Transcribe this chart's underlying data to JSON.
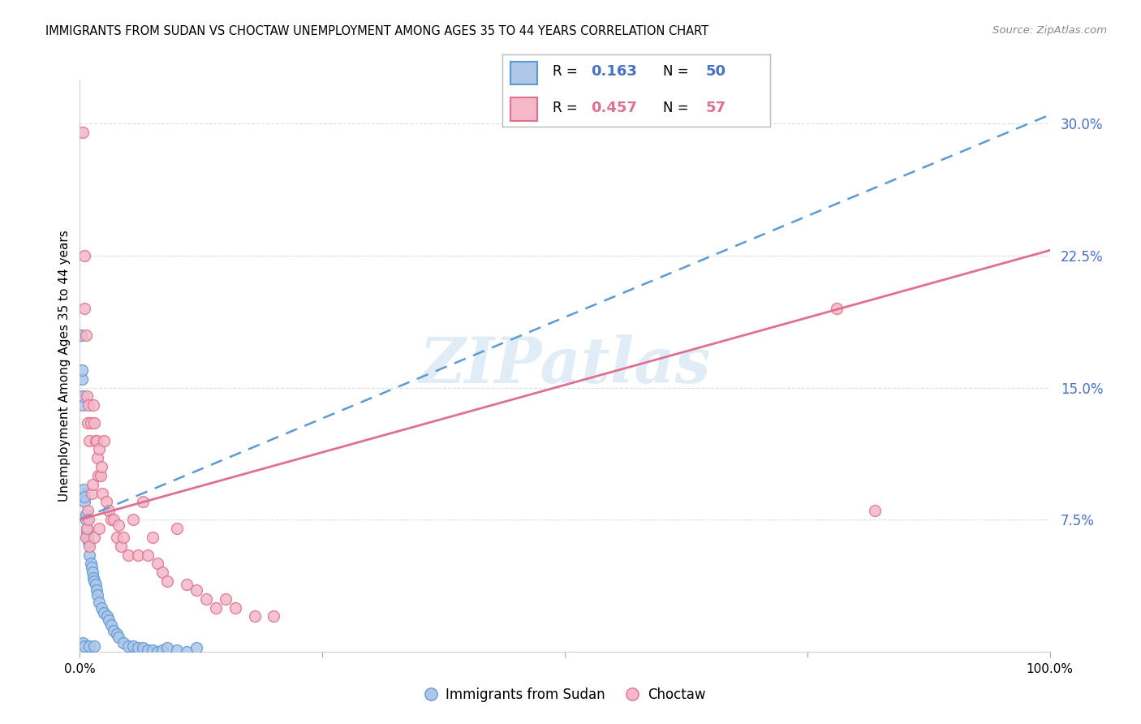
{
  "title": "IMMIGRANTS FROM SUDAN VS CHOCTAW UNEMPLOYMENT AMONG AGES 35 TO 44 YEARS CORRELATION CHART",
  "source": "Source: ZipAtlas.com",
  "ylabel": "Unemployment Among Ages 35 to 44 years",
  "xrange": [
    0.0,
    100.0
  ],
  "yrange": [
    0.0,
    0.325
  ],
  "yticks": [
    0.075,
    0.15,
    0.225,
    0.3
  ],
  "ytick_labels": [
    "7.5%",
    "15.0%",
    "22.5%",
    "30.0%"
  ],
  "xtick_positions": [
    0.0,
    25.0,
    50.0,
    75.0,
    100.0
  ],
  "xtick_labels": [
    "0.0%",
    "",
    "",
    "",
    "100.0%"
  ],
  "series1_color": "#aec6e8",
  "series1_edge": "#5b9bd5",
  "series1_R": 0.163,
  "series1_N": 50,
  "series2_color": "#f4b8c8",
  "series2_edge": "#e07090",
  "series2_R": 0.457,
  "series2_N": 57,
  "trend1_color": "#5b9bd5",
  "trend1_style": "--",
  "trend2_color": "#e07090",
  "trend2_style": "-",
  "watermark": "ZIPatlas",
  "watermark_color": "#c8dff0",
  "blue_text_color": "#4472c4",
  "pink_text_color": "#e07090",
  "scatter1_x": [
    0.1,
    0.2,
    0.2,
    0.3,
    0.3,
    0.3,
    0.4,
    0.4,
    0.5,
    0.5,
    0.5,
    0.6,
    0.6,
    0.7,
    0.7,
    0.8,
    0.9,
    1.0,
    1.0,
    1.1,
    1.2,
    1.3,
    1.4,
    1.5,
    1.5,
    1.6,
    1.7,
    1.8,
    2.0,
    2.2,
    2.5,
    2.8,
    3.0,
    3.2,
    3.5,
    3.8,
    4.0,
    4.5,
    5.0,
    5.5,
    6.0,
    6.5,
    7.0,
    7.5,
    8.0,
    8.5,
    9.0,
    10.0,
    11.0,
    12.0
  ],
  "scatter1_y": [
    0.18,
    0.155,
    0.16,
    0.14,
    0.145,
    0.005,
    0.09,
    0.092,
    0.085,
    0.088,
    0.003,
    0.075,
    0.078,
    0.068,
    0.07,
    0.065,
    0.062,
    0.055,
    0.003,
    0.05,
    0.048,
    0.045,
    0.042,
    0.04,
    0.003,
    0.038,
    0.035,
    0.032,
    0.028,
    0.025,
    0.022,
    0.02,
    0.018,
    0.015,
    0.012,
    0.01,
    0.008,
    0.005,
    0.003,
    0.003,
    0.002,
    0.002,
    0.001,
    0.001,
    0.0,
    0.001,
    0.002,
    0.001,
    0.0,
    0.002
  ],
  "scatter2_x": [
    0.3,
    0.5,
    0.6,
    0.7,
    0.8,
    0.9,
    1.0,
    1.1,
    1.2,
    1.3,
    1.4,
    1.5,
    1.6,
    1.7,
    1.8,
    1.9,
    2.0,
    2.1,
    2.2,
    2.3,
    2.5,
    2.7,
    3.0,
    3.2,
    3.5,
    3.8,
    4.0,
    4.2,
    4.5,
    5.0,
    5.5,
    6.0,
    6.5,
    7.0,
    7.5,
    8.0,
    8.5,
    9.0,
    10.0,
    11.0,
    12.0,
    13.0,
    14.0,
    15.0,
    16.0,
    18.0,
    20.0,
    78.0,
    82.0,
    0.5,
    0.6,
    0.7,
    0.8,
    0.9,
    1.0,
    1.5,
    2.0
  ],
  "scatter2_y": [
    0.295,
    0.195,
    0.18,
    0.145,
    0.13,
    0.14,
    0.12,
    0.13,
    0.09,
    0.095,
    0.14,
    0.13,
    0.12,
    0.12,
    0.11,
    0.1,
    0.115,
    0.1,
    0.105,
    0.09,
    0.12,
    0.085,
    0.08,
    0.075,
    0.075,
    0.065,
    0.072,
    0.06,
    0.065,
    0.055,
    0.075,
    0.055,
    0.085,
    0.055,
    0.065,
    0.05,
    0.045,
    0.04,
    0.07,
    0.038,
    0.035,
    0.03,
    0.025,
    0.03,
    0.025,
    0.02,
    0.02,
    0.195,
    0.08,
    0.225,
    0.065,
    0.07,
    0.08,
    0.075,
    0.06,
    0.065,
    0.07
  ],
  "trend1_x0": 0.0,
  "trend1_y0": 0.075,
  "trend1_x1": 100.0,
  "trend1_y1": 0.305,
  "trend2_x0": 0.0,
  "trend2_y0": 0.075,
  "trend2_x1": 100.0,
  "trend2_y1": 0.228
}
